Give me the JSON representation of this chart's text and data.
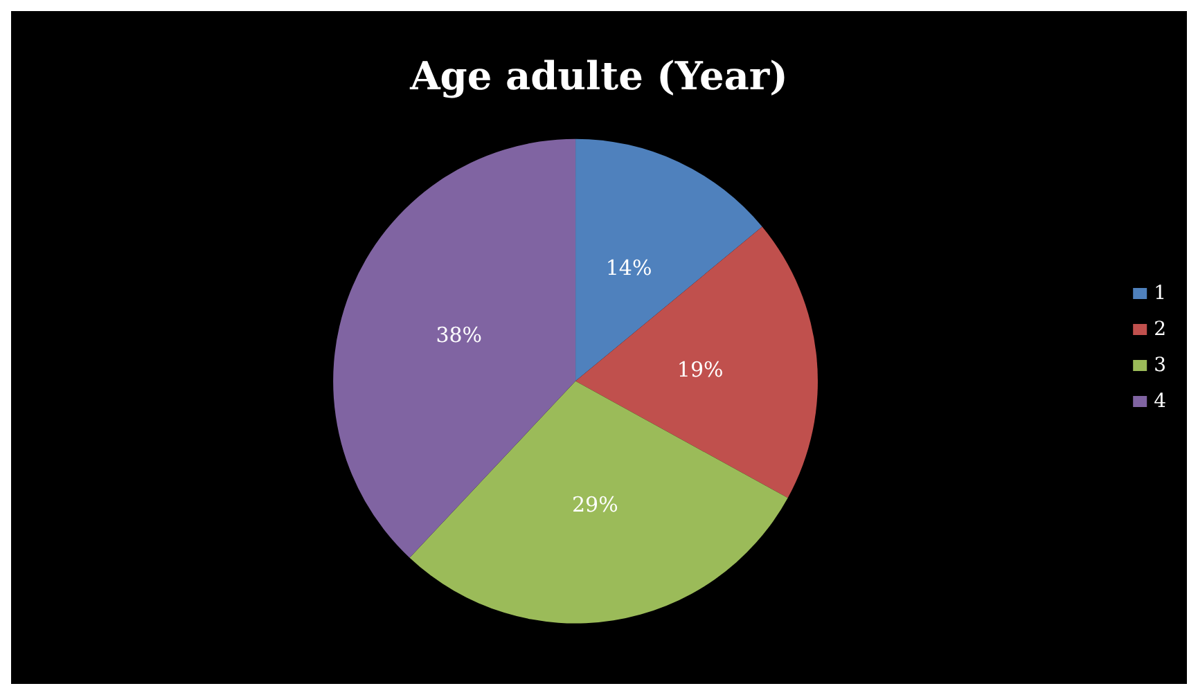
{
  "chart_data": {
    "type": "pie",
    "title": "Age adulte (Year)",
    "categories": [
      "1",
      "2",
      "3",
      "4"
    ],
    "values": [
      14,
      19,
      29,
      38
    ],
    "value_labels": [
      "14%",
      "19%",
      "29%",
      "38%"
    ],
    "colors": [
      "#4f81bd",
      "#c0504d",
      "#9bbb59",
      "#8064a2"
    ],
    "legend": "right"
  }
}
